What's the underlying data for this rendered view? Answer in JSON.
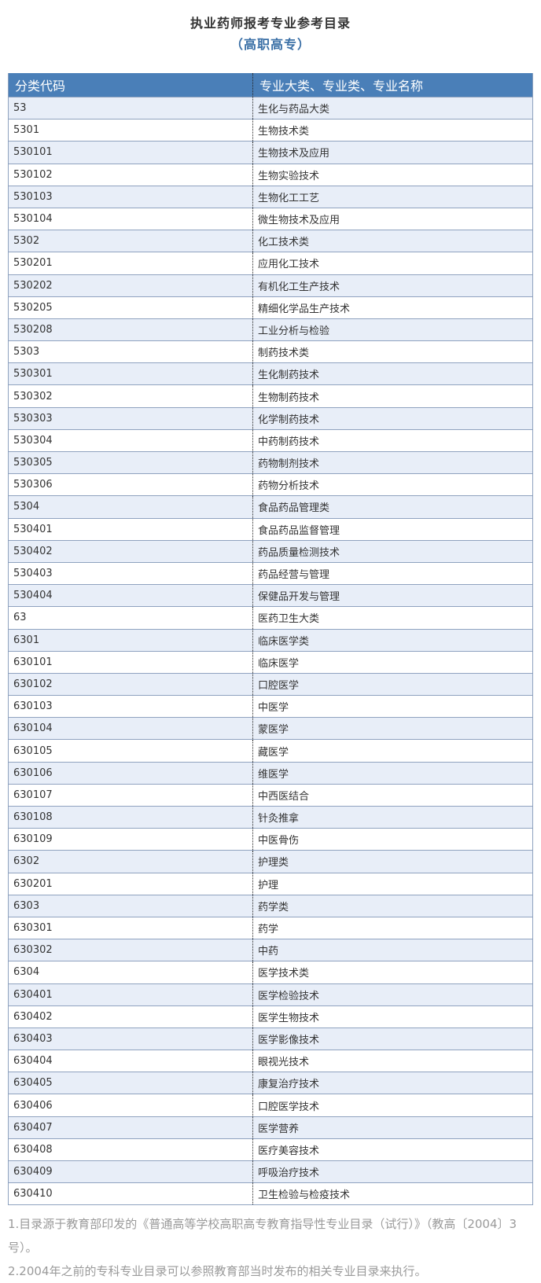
{
  "title": "执业药师报考专业参考目录",
  "subtitle": "（高职高专）",
  "table": {
    "headers": [
      "分类代码",
      "专业大类、专业类、专业名称"
    ],
    "rows": [
      [
        "53",
        "生化与药品大类"
      ],
      [
        "5301",
        "生物技术类"
      ],
      [
        "530101",
        "生物技术及应用"
      ],
      [
        "530102",
        "生物实验技术"
      ],
      [
        "530103",
        "生物化工工艺"
      ],
      [
        "530104",
        "微生物技术及应用"
      ],
      [
        "5302",
        "化工技术类"
      ],
      [
        "530201",
        "应用化工技术"
      ],
      [
        "530202",
        "有机化工生产技术"
      ],
      [
        "530205",
        "精细化学品生产技术"
      ],
      [
        "530208",
        "工业分析与检验"
      ],
      [
        "5303",
        "制药技术类"
      ],
      [
        "530301",
        "生化制药技术"
      ],
      [
        "530302",
        "生物制药技术"
      ],
      [
        "530303",
        "化学制药技术"
      ],
      [
        "530304",
        "中药制药技术"
      ],
      [
        "530305",
        "药物制剂技术"
      ],
      [
        "530306",
        "药物分析技术"
      ],
      [
        "5304",
        "食品药品管理类"
      ],
      [
        "530401",
        "食品药品监督管理"
      ],
      [
        "530402",
        "药品质量检测技术"
      ],
      [
        "530403",
        "药品经营与管理"
      ],
      [
        "530404",
        "保健品开发与管理"
      ],
      [
        "63",
        "医药卫生大类"
      ],
      [
        "6301",
        "临床医学类"
      ],
      [
        "630101",
        "临床医学"
      ],
      [
        "630102",
        "口腔医学"
      ],
      [
        "630103",
        "中医学"
      ],
      [
        "630104",
        "蒙医学"
      ],
      [
        "630105",
        "藏医学"
      ],
      [
        "630106",
        "维医学"
      ],
      [
        "630107",
        "中西医结合"
      ],
      [
        "630108",
        "针灸推拿"
      ],
      [
        "630109",
        "中医骨伤"
      ],
      [
        "6302",
        "护理类"
      ],
      [
        "630201",
        "护理"
      ],
      [
        "6303",
        "药学类"
      ],
      [
        "630301",
        "药学"
      ],
      [
        "630302",
        "中药"
      ],
      [
        "6304",
        "医学技术类"
      ],
      [
        "630401",
        "医学检验技术"
      ],
      [
        "630402",
        "医学生物技术"
      ],
      [
        "630403",
        "医学影像技术"
      ],
      [
        "630404",
        "眼视光技术"
      ],
      [
        "630405",
        "康复治疗技术"
      ],
      [
        "630406",
        "口腔医学技术"
      ],
      [
        "630407",
        "医学营养"
      ],
      [
        "630408",
        "医疗美容技术"
      ],
      [
        "630409",
        "呼吸治疗技术"
      ],
      [
        "630410",
        "卫生检验与检疫技术"
      ]
    ]
  },
  "notes": [
    "1.目录源于教育部印发的《普通高等学校高职高专教育指导性专业目录（试行）》（教高〔2004〕3号）。",
    "2.2004年之前的专科专业目录可以参照教育部当时发布的相关专业目录来执行。"
  ],
  "colors": {
    "header_bg": "#4a7fb8",
    "row_alt": "#e8eef8",
    "subtitle": "#3a6fa6",
    "notes": "#9a9a9a"
  }
}
